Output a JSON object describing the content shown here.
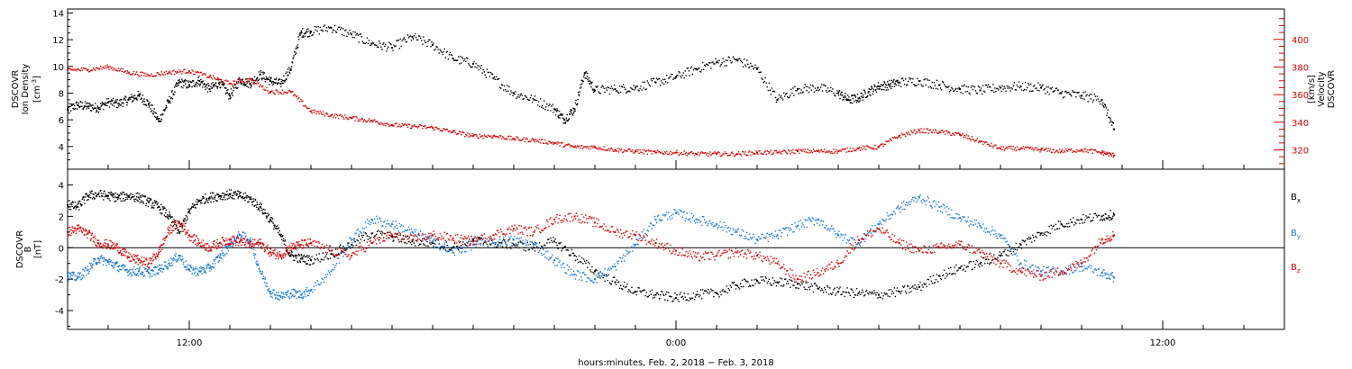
{
  "chart_data": [
    {
      "type": "scatter",
      "panel": "top",
      "left_axis": {
        "label_lines": [
          "DSCOVR",
          "Ion Density"
        ],
        "unit": "cm",
        "unit_exp": "-3",
        "ylim": [
          2.3,
          14.3
        ],
        "ticks": [
          4,
          6,
          8,
          10,
          12,
          14
        ],
        "color": "#000000"
      },
      "right_axis": {
        "label_lines": [
          "DSCOVR",
          "Velocity",
          "[km/s]"
        ],
        "ylim": [
          306,
          422
        ],
        "ticks": [
          320,
          340,
          360,
          380,
          400
        ],
        "color": "#dd0000"
      },
      "series": [
        {
          "color": "#000000",
          "axis": "left",
          "x": [
            0,
            0.25,
            0.5,
            0.75,
            1.0,
            1.25,
            1.5,
            1.75,
            2.0,
            2.25,
            2.5,
            2.75,
            3.0,
            3.25,
            3.5,
            3.75,
            4.0,
            4.25,
            4.5,
            4.75,
            5.0,
            5.25,
            5.5,
            5.75,
            6.0,
            6.5,
            7.0,
            7.5,
            8.0,
            8.5,
            9.0,
            9.5,
            10.0,
            10.5,
            11.0,
            11.5,
            12.0,
            12.25,
            12.5,
            12.75,
            13.0,
            13.5,
            14.0,
            14.5,
            15.0,
            15.5,
            16.0,
            16.5,
            17.0,
            17.5,
            18.0,
            18.5,
            19.0,
            19.25,
            19.5,
            19.75,
            20.0,
            20.25,
            20.5,
            21.0,
            21.5,
            22.0,
            22.5,
            23.0,
            23.5,
            24.0,
            24.5,
            25.0,
            25.5,
            25.8
          ],
          "y": [
            6.8,
            7.1,
            7.0,
            6.9,
            7.3,
            7.2,
            7.5,
            7.8,
            7.2,
            5.9,
            7.4,
            8.8,
            8.6,
            8.9,
            8.3,
            8.8,
            7.8,
            9.0,
            8.7,
            9.4,
            8.9,
            8.7,
            9.8,
            12.5,
            12.6,
            12.9,
            12.4,
            11.7,
            11.4,
            12.2,
            11.6,
            10.6,
            10.2,
            9.1,
            8.0,
            7.5,
            6.8,
            6.0,
            6.8,
            9.5,
            8.2,
            8.3,
            8.4,
            8.8,
            9.2,
            9.8,
            10.3,
            10.5,
            9.8,
            7.5,
            8.3,
            8.4,
            8.0,
            7.5,
            7.6,
            8.1,
            8.5,
            8.6,
            8.8,
            8.9,
            8.6,
            8.3,
            8.2,
            8.4,
            8.5,
            8.4,
            8.0,
            7.8,
            7.5,
            5.3
          ]
        },
        {
          "color": "#dd0000",
          "axis": "right",
          "x": [
            0,
            0.5,
            1.0,
            1.5,
            2.0,
            2.5,
            3.0,
            3.5,
            4.0,
            4.5,
            5.0,
            5.5,
            6.0,
            6.5,
            7.0,
            7.5,
            8.0,
            8.5,
            9.0,
            9.5,
            10.0,
            10.5,
            11.0,
            11.5,
            12.0,
            12.5,
            13.0,
            13.5,
            14.0,
            14.5,
            15.0,
            15.5,
            16.0,
            16.5,
            17.0,
            17.5,
            18.0,
            18.5,
            19.0,
            19.5,
            20.0,
            20.5,
            21.0,
            21.5,
            22.0,
            22.5,
            23.0,
            23.5,
            24.0,
            24.5,
            25.0,
            25.5,
            25.8
          ],
          "y": [
            378,
            378,
            380,
            376,
            374,
            376,
            377,
            373,
            368,
            371,
            362,
            362,
            348,
            345,
            343,
            341,
            338,
            337,
            336,
            333,
            330,
            330,
            328,
            327,
            325,
            322,
            322,
            320,
            319,
            318,
            318,
            317,
            317,
            317,
            318,
            318,
            319,
            319,
            319,
            321,
            322,
            330,
            334,
            333,
            331,
            326,
            321,
            321,
            320,
            319,
            320,
            318,
            316
          ]
        }
      ],
      "y_grid": false
    },
    {
      "type": "scatter",
      "panel": "bottom",
      "left_axis": {
        "label_lines": [
          "DSCOVR",
          "B",
          "[nT]"
        ],
        "ylim": [
          -5.2,
          5.0
        ],
        "ticks": [
          -4,
          -2,
          0,
          2,
          4
        ],
        "color": "#000000"
      },
      "zero_line": true,
      "legend_position": "right",
      "legend": [
        {
          "base": "B",
          "sub": "x",
          "color": "#000000"
        },
        {
          "base": "B",
          "sub": "y",
          "color": "#1a7adc"
        },
        {
          "base": "B",
          "sub": "z",
          "color": "#dd0000"
        }
      ],
      "series": [
        {
          "color": "#000000",
          "x": [
            0,
            0.25,
            0.5,
            0.75,
            1.0,
            1.25,
            1.5,
            1.75,
            2.0,
            2.25,
            2.5,
            2.75,
            3.0,
            3.25,
            3.5,
            3.75,
            4.0,
            4.25,
            4.5,
            4.75,
            5.0,
            5.25,
            5.5,
            5.75,
            6.0,
            6.5,
            7.0,
            7.5,
            8.0,
            8.5,
            9.0,
            9.5,
            10.0,
            10.5,
            11.0,
            11.5,
            12.0,
            12.5,
            13.0,
            13.5,
            14.0,
            14.5,
            15.0,
            15.5,
            16.0,
            16.5,
            17.0,
            17.5,
            18.0,
            18.5,
            19.0,
            19.5,
            20.0,
            20.5,
            21.0,
            21.5,
            22.0,
            22.5,
            23.0,
            23.5,
            24.0,
            24.5,
            25.0,
            25.5,
            25.8
          ],
          "y": [
            2.7,
            2.6,
            3.3,
            3.4,
            3.3,
            3.2,
            3.3,
            3.2,
            2.9,
            2.6,
            2.0,
            1.0,
            2.3,
            3.0,
            3.2,
            3.3,
            3.4,
            3.3,
            3.1,
            2.6,
            1.8,
            0.8,
            -0.5,
            -0.7,
            -0.8,
            -0.4,
            0.2,
            0.9,
            0.7,
            0.4,
            0.3,
            0.0,
            0.5,
            0.3,
            0.2,
            0.0,
            0.4,
            -0.5,
            -1.5,
            -2.2,
            -2.8,
            -3.0,
            -3.2,
            -3.0,
            -2.9,
            -2.4,
            -2.1,
            -2.2,
            -2.3,
            -2.6,
            -2.8,
            -2.9,
            -3.0,
            -2.8,
            -2.5,
            -1.8,
            -1.3,
            -1.0,
            -0.5,
            0.2,
            0.9,
            1.5,
            1.8,
            2.0,
            2.1
          ]
        },
        {
          "color": "#1a7adc",
          "x": [
            0,
            0.25,
            0.5,
            0.75,
            1.0,
            1.25,
            1.5,
            1.75,
            2.0,
            2.25,
            2.5,
            2.75,
            3.0,
            3.25,
            3.5,
            3.75,
            4.0,
            4.25,
            4.5,
            4.75,
            5.0,
            5.25,
            5.5,
            5.75,
            6.0,
            6.5,
            7.0,
            7.5,
            8.0,
            8.5,
            9.0,
            9.5,
            10.0,
            10.5,
            11.0,
            11.5,
            12.0,
            12.5,
            13.0,
            13.5,
            14.0,
            14.5,
            15.0,
            15.5,
            16.0,
            16.5,
            17.0,
            17.5,
            18.0,
            18.5,
            19.0,
            19.5,
            20.0,
            20.5,
            21.0,
            21.5,
            22.0,
            22.5,
            23.0,
            23.5,
            24.0,
            24.5,
            25.0,
            25.5,
            25.8
          ],
          "y": [
            -1.8,
            -1.9,
            -1.4,
            -0.7,
            -0.9,
            -1.2,
            -1.5,
            -1.5,
            -1.6,
            -1.4,
            -1.0,
            -0.5,
            -1.4,
            -1.5,
            -1.3,
            -0.6,
            0.2,
            0.8,
            0.5,
            -1.5,
            -2.8,
            -3.1,
            -2.9,
            -3.0,
            -2.7,
            -1.5,
            0.5,
            1.8,
            1.5,
            1.0,
            0.4,
            -0.3,
            0.2,
            0.3,
            0.5,
            0.2,
            -0.8,
            -1.7,
            -2.0,
            -1.2,
            0.2,
            1.8,
            2.2,
            1.8,
            1.5,
            1.0,
            0.5,
            0.8,
            1.4,
            1.8,
            0.8,
            0.3,
            1.5,
            2.5,
            3.2,
            2.6,
            1.9,
            1.4,
            0.8,
            -1.0,
            -1.5,
            -1.5,
            -1.2,
            -1.6,
            -1.9
          ]
        },
        {
          "color": "#dd0000",
          "x": [
            0,
            0.25,
            0.5,
            0.75,
            1.0,
            1.25,
            1.5,
            1.75,
            2.0,
            2.25,
            2.5,
            2.75,
            3.0,
            3.25,
            3.5,
            3.75,
            4.0,
            4.25,
            4.5,
            4.75,
            5.0,
            5.25,
            5.5,
            5.75,
            6.0,
            6.5,
            7.0,
            7.5,
            8.0,
            8.5,
            9.0,
            9.5,
            10.0,
            10.5,
            11.0,
            11.5,
            12.0,
            12.5,
            13.0,
            13.5,
            14.0,
            14.5,
            15.0,
            15.5,
            16.0,
            16.5,
            17.0,
            17.5,
            18.0,
            18.5,
            19.0,
            19.5,
            20.0,
            20.5,
            21.0,
            21.5,
            22.0,
            22.5,
            23.0,
            23.5,
            24.0,
            24.5,
            25.0,
            25.5,
            25.8
          ],
          "y": [
            1.0,
            1.2,
            0.9,
            0.3,
            0.2,
            0.0,
            -0.6,
            -0.8,
            -1.0,
            -0.3,
            1.1,
            1.6,
            0.8,
            0.3,
            0.0,
            0.3,
            0.5,
            0.4,
            0.2,
            0.3,
            -0.3,
            -0.5,
            0.0,
            0.2,
            0.3,
            -0.2,
            -0.5,
            0.3,
            0.8,
            0.5,
            0.8,
            0.6,
            0.4,
            0.8,
            1.2,
            1.0,
            1.8,
            2.0,
            1.6,
            1.0,
            0.8,
            0.3,
            -0.2,
            -0.6,
            -0.5,
            -0.3,
            -0.5,
            -1.0,
            -2.0,
            -1.6,
            -1.0,
            0.5,
            1.2,
            0.3,
            -0.2,
            0.0,
            0.2,
            -0.3,
            -1.0,
            -1.5,
            -1.8,
            -1.5,
            -1.0,
            0.5,
            0.8
          ]
        }
      ],
      "y_grid": false
    }
  ],
  "x_axis": {
    "unit": "hours since 2018-02-02 09:00",
    "xlim": [
      0,
      30
    ],
    "tick_hours": [
      3,
      15,
      27
    ],
    "tick_labels": [
      "12:00",
      "0:00",
      "12:00"
    ],
    "minor_step_hours": 1,
    "label": "hours:minutes, Feb.  2, 2018 − Feb.  3, 2018"
  }
}
